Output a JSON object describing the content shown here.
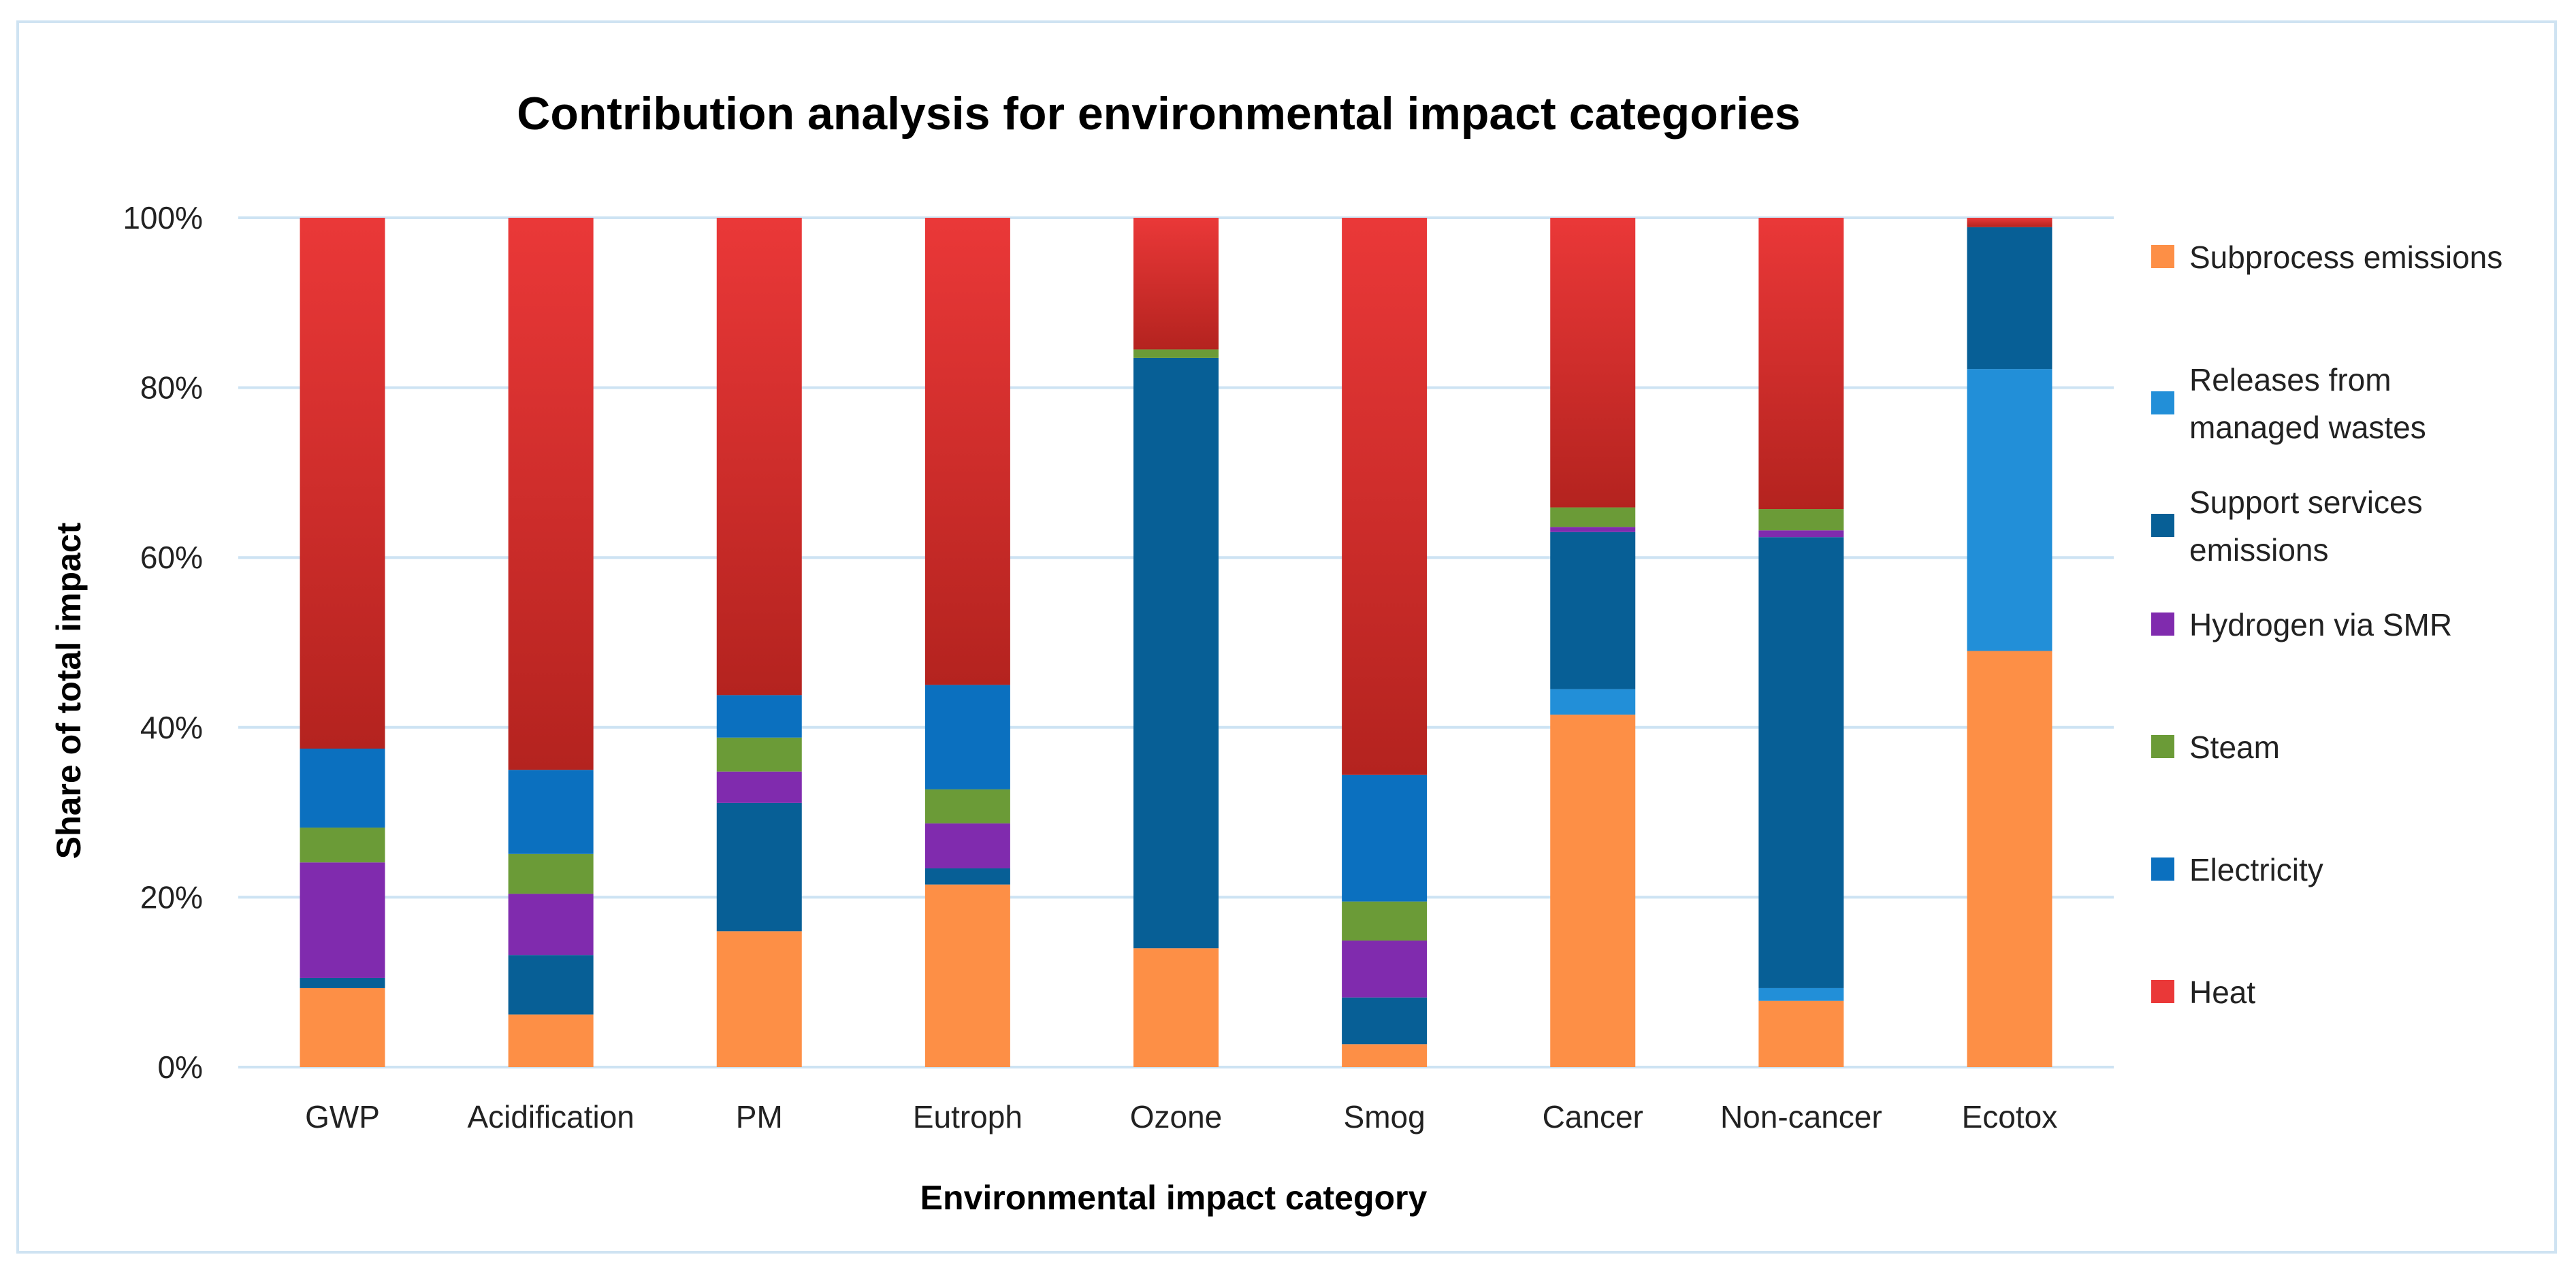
{
  "colors": {
    "frame_border": "#cfe3f2",
    "gridline": "#cde3f3",
    "subprocess_emissions": "#fd8f46",
    "releases_from_managed_wastes": "#228fd8",
    "support_services_emissions": "#075f96",
    "hydrogen_via_smr": "#802bae",
    "steam": "#6b9b37",
    "electricity": "#0b70bf",
    "heat_light": "#ea3838",
    "heat_dark": "#b4231f"
  },
  "chart_data": {
    "type": "bar",
    "stacked": true,
    "percent_stacked": true,
    "title": "Contribution analysis for environmental impact categories",
    "xlabel": "Environmental impact category",
    "ylabel": "Share of total impact",
    "ylim": [
      0,
      100
    ],
    "yticks": [
      "0%",
      "20%",
      "40%",
      "60%",
      "80%",
      "100%"
    ],
    "grid": true,
    "legend_position": "right",
    "categories": [
      "GWP",
      "Acidification",
      "PM",
      "Eutroph",
      "Ozone",
      "Smog",
      "Cancer",
      "Non-cancer",
      "Ecotox"
    ],
    "series": [
      {
        "key": "subprocess",
        "name": "Subprocess emissions",
        "color_key": "subprocess_emissions",
        "values": [
          9.3,
          6.2,
          16.0,
          21.5,
          14.0,
          2.7,
          41.5,
          7.8,
          49.0
        ]
      },
      {
        "key": "releases",
        "name": "Releases from managed wastes",
        "legend_lines": [
          "Releases from",
          "managed wastes"
        ],
        "color_key": "releases_from_managed_wastes",
        "values": [
          0.0,
          0.0,
          0.0,
          0.0,
          0.0,
          0.0,
          3.0,
          1.5,
          33.2
        ]
      },
      {
        "key": "support",
        "name": "Support services emissions",
        "legend_lines": [
          "Support services",
          "emissions"
        ],
        "color_key": "support_services_emissions",
        "values": [
          1.2,
          7.0,
          15.1,
          1.9,
          69.5,
          5.5,
          18.5,
          53.1,
          16.7
        ]
      },
      {
        "key": "hydrogen",
        "name": "Hydrogen via SMR",
        "color_key": "hydrogen_via_smr",
        "values": [
          13.6,
          7.2,
          3.7,
          5.3,
          0.0,
          6.7,
          0.6,
          0.8,
          0.0
        ]
      },
      {
        "key": "steam",
        "name": "Steam",
        "color_key": "steam",
        "values": [
          4.1,
          4.7,
          4.0,
          4.0,
          1.0,
          4.6,
          2.3,
          2.5,
          0.0
        ]
      },
      {
        "key": "electricity",
        "name": "Electricity",
        "color_key": "electricity",
        "values": [
          9.3,
          9.9,
          5.0,
          12.3,
          0.0,
          14.9,
          0.0,
          0.0,
          0.0
        ]
      },
      {
        "key": "heat",
        "name": "Heat",
        "color_key": "heat_light",
        "values": [
          62.5,
          65.0,
          56.2,
          55.0,
          15.5,
          65.6,
          34.1,
          34.3,
          1.1
        ]
      }
    ]
  }
}
